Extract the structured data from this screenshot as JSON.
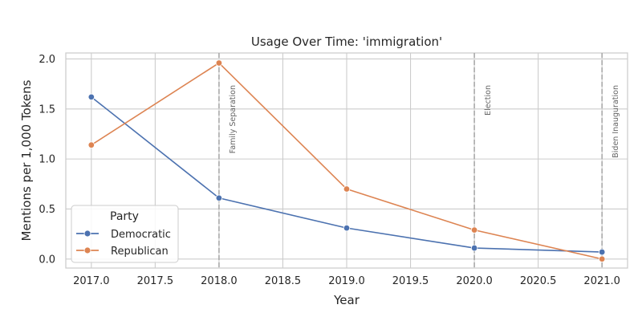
{
  "chart_data": {
    "type": "line",
    "title": "Usage Over Time: 'immigration'",
    "xlabel": "Year",
    "ylabel": "Mentions per 1,000 Tokens",
    "xlim": [
      2016.8,
      2021.2
    ],
    "ylim": [
      -0.09,
      2.06
    ],
    "x_ticks": [
      2017.0,
      2017.5,
      2018.0,
      2018.5,
      2019.0,
      2019.5,
      2020.0,
      2020.5,
      2021.0
    ],
    "x_tick_labels": [
      "2017.0",
      "2017.5",
      "2018.0",
      "2018.5",
      "2019.0",
      "2019.5",
      "2020.0",
      "2020.5",
      "2021.0"
    ],
    "y_ticks": [
      0.0,
      0.5,
      1.0,
      1.5,
      2.0
    ],
    "y_tick_labels": [
      "0.0",
      "0.5",
      "1.0",
      "1.5",
      "2.0"
    ],
    "grid": true,
    "x": [
      2017,
      2018,
      2019,
      2020,
      2021
    ],
    "series": [
      {
        "name": "Democratic",
        "color": "#4c72b0",
        "values": [
          1.62,
          0.61,
          0.31,
          0.11,
          0.07
        ]
      },
      {
        "name": "Republican",
        "color": "#dd8452",
        "values": [
          1.14,
          1.96,
          0.7,
          0.29,
          0.0
        ]
      }
    ],
    "legend": {
      "title": "Party",
      "position": "lower-left"
    },
    "events": [
      {
        "x": 2018,
        "label": "Family Separation"
      },
      {
        "x": 2020,
        "label": "Election"
      },
      {
        "x": 2021,
        "label": "Biden Inauguration"
      }
    ],
    "event_line_color": "#aaaaaa",
    "grid_color": "#cccccc"
  }
}
